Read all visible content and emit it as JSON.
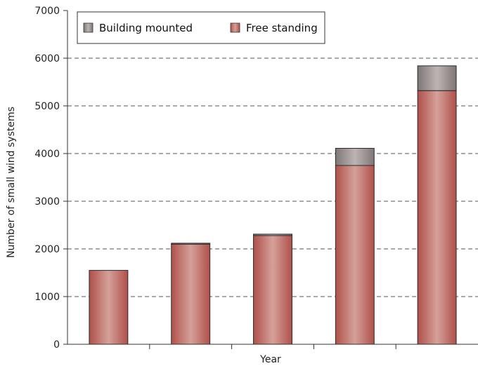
{
  "chart_data": {
    "type": "bar",
    "stacked": true,
    "categories": [
      "",
      "",
      "",
      "",
      ""
    ],
    "series": [
      {
        "name": "Free standing",
        "values": [
          1550,
          2100,
          2280,
          3750,
          5320
        ],
        "color": "#b85a52"
      },
      {
        "name": "Building mounted",
        "values": [
          0,
          20,
          30,
          360,
          520
        ],
        "color": "#8c8483"
      }
    ],
    "xlabel": "Year",
    "ylabel": "Number of small wind systems",
    "ylim": [
      0,
      7000
    ],
    "yticks": [
      0,
      1000,
      2000,
      3000,
      4000,
      5000,
      6000,
      7000
    ],
    "ytick_labels": [
      "0",
      "1000",
      "2000",
      "3000",
      "4000",
      "5000",
      "6000",
      "7000"
    ],
    "grid": "horizontal dashed",
    "legend_position": "top-left"
  }
}
